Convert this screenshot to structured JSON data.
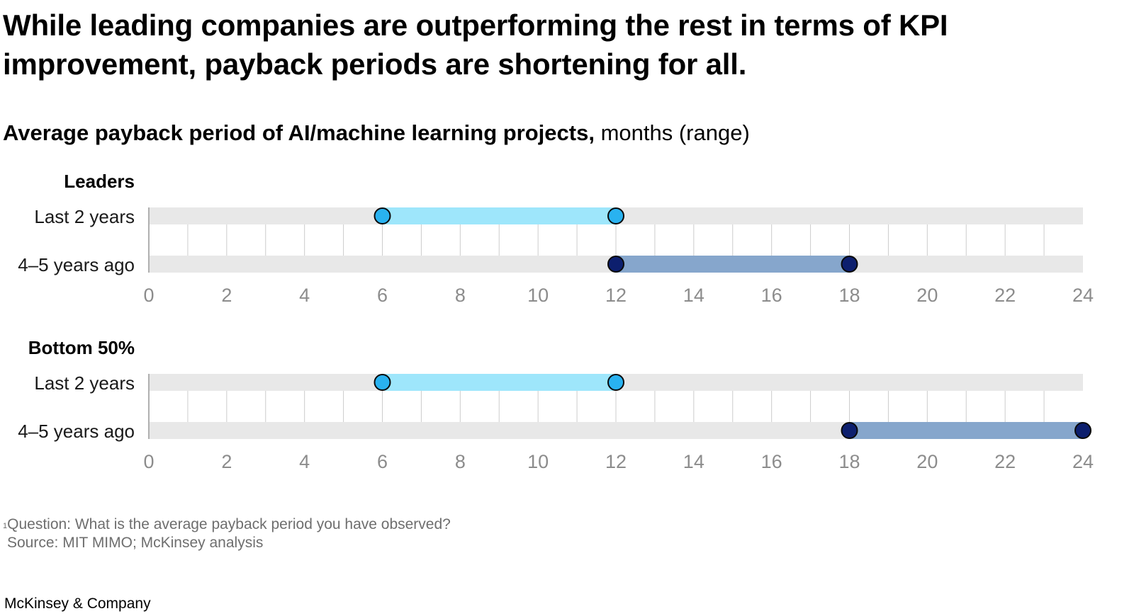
{
  "headline": "While leading companies are outperforming the rest in terms of KPI improvement, payback periods are shortening for all.",
  "subtitle": {
    "bold": "Average payback period of AI/machine learning projects,",
    "light": " months (range)"
  },
  "colors": {
    "track": "#e8e8e8",
    "recent_bar": "#9ee6fb",
    "recent_dot": "#29b2f0",
    "past_bar": "#86a6cc",
    "past_dot": "#0d1f6e",
    "grid": "#cccccc",
    "tick_text": "#8c8c8c"
  },
  "chart_data": {
    "type": "range",
    "xlim": [
      0,
      24
    ],
    "ticks": [
      "0",
      "2",
      "4",
      "6",
      "8",
      "10",
      "12",
      "14",
      "16",
      "18",
      "20",
      "22",
      "24"
    ],
    "groups": [
      {
        "title": "Leaders",
        "rows": [
          {
            "label": "Last 2 years",
            "range": [
              6,
              12
            ],
            "kind": "recent"
          },
          {
            "label": "4–5 years ago",
            "range": [
              12,
              18
            ],
            "kind": "past"
          }
        ]
      },
      {
        "title": "Bottom 50%",
        "rows": [
          {
            "label": "Last 2 years",
            "range": [
              6,
              12
            ],
            "kind": "recent"
          },
          {
            "label": "4–5 years ago",
            "range": [
              18,
              24
            ],
            "kind": "past"
          }
        ]
      }
    ]
  },
  "footnote": {
    "marker": "1",
    "question": "Question: What is the average payback period you have observed?",
    "source": "Source: MIT MIMO; McKinsey analysis"
  },
  "brand": "McKinsey & Company"
}
